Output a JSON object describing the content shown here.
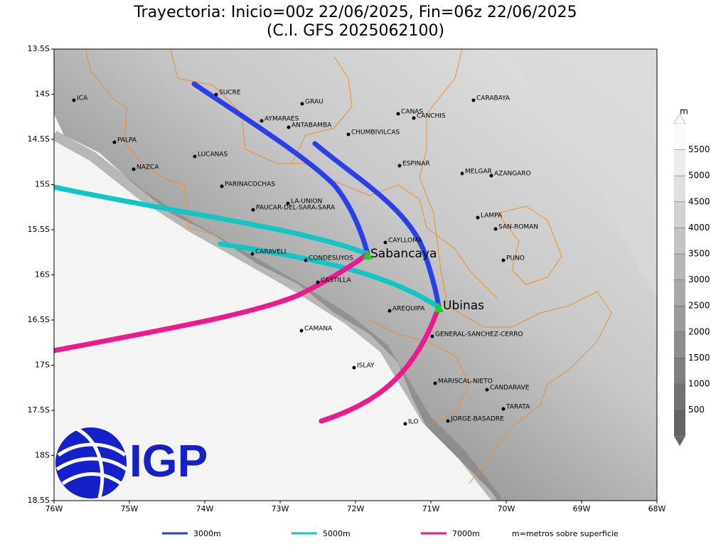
{
  "header": {
    "title": "Trayectoria: Inicio=00z 22/06/2025, Fin=06z 22/06/2025",
    "subtitle": "(C.I. GFS 2025062100)"
  },
  "axes": {
    "y_labels": [
      "13.5S",
      "14S",
      "14.5S",
      "15S",
      "15.5S",
      "16S",
      "16.5S",
      "17S",
      "17.5S",
      "18S",
      "18.5S"
    ],
    "x_labels": [
      "76W",
      "75W",
      "74W",
      "73W",
      "72W",
      "71W",
      "70W",
      "69W",
      "68W"
    ]
  },
  "places": [
    "ICA",
    "SUCRE",
    "GRAU",
    "CARABAYA",
    "CANAS",
    "CANCHIS",
    "AYMARAES",
    "ANTABAMBA",
    "CHUMBIVILCAS",
    "PALPA",
    "LUCANAS",
    "ESPINAR",
    "MELGAR",
    "AZANGARO",
    "NAZCA",
    "PARINACOCHAS",
    "LA-UNION",
    "PAUCAR-DEL-SARA-SARA",
    "LAMPA",
    "SAN-ROMAN",
    "CAYLLOMA",
    "CARAVELI",
    "CONDESUYOS",
    "PUNO",
    "CASTILLA",
    "AREQUIPA",
    "GENERAL-SANCHEZ-CERRO",
    "CAMANA",
    "ISLAY",
    "MARISCAL-NIETO",
    "CANDARAVE",
    "TARATA",
    "ILO",
    "JORGE-BASADRE"
  ],
  "volcanoes": [
    "Sabancaya",
    "Ubinas"
  ],
  "colorbar": {
    "unit": "m",
    "levels": [
      500,
      1000,
      1500,
      2000,
      2500,
      3000,
      3500,
      4000,
      4500,
      5000,
      5500
    ]
  },
  "legend": {
    "items": [
      "3000m",
      "5000m",
      "7000m"
    ],
    "note": "m=metros sobre superficie"
  },
  "logo": {
    "text": "IGP"
  }
}
